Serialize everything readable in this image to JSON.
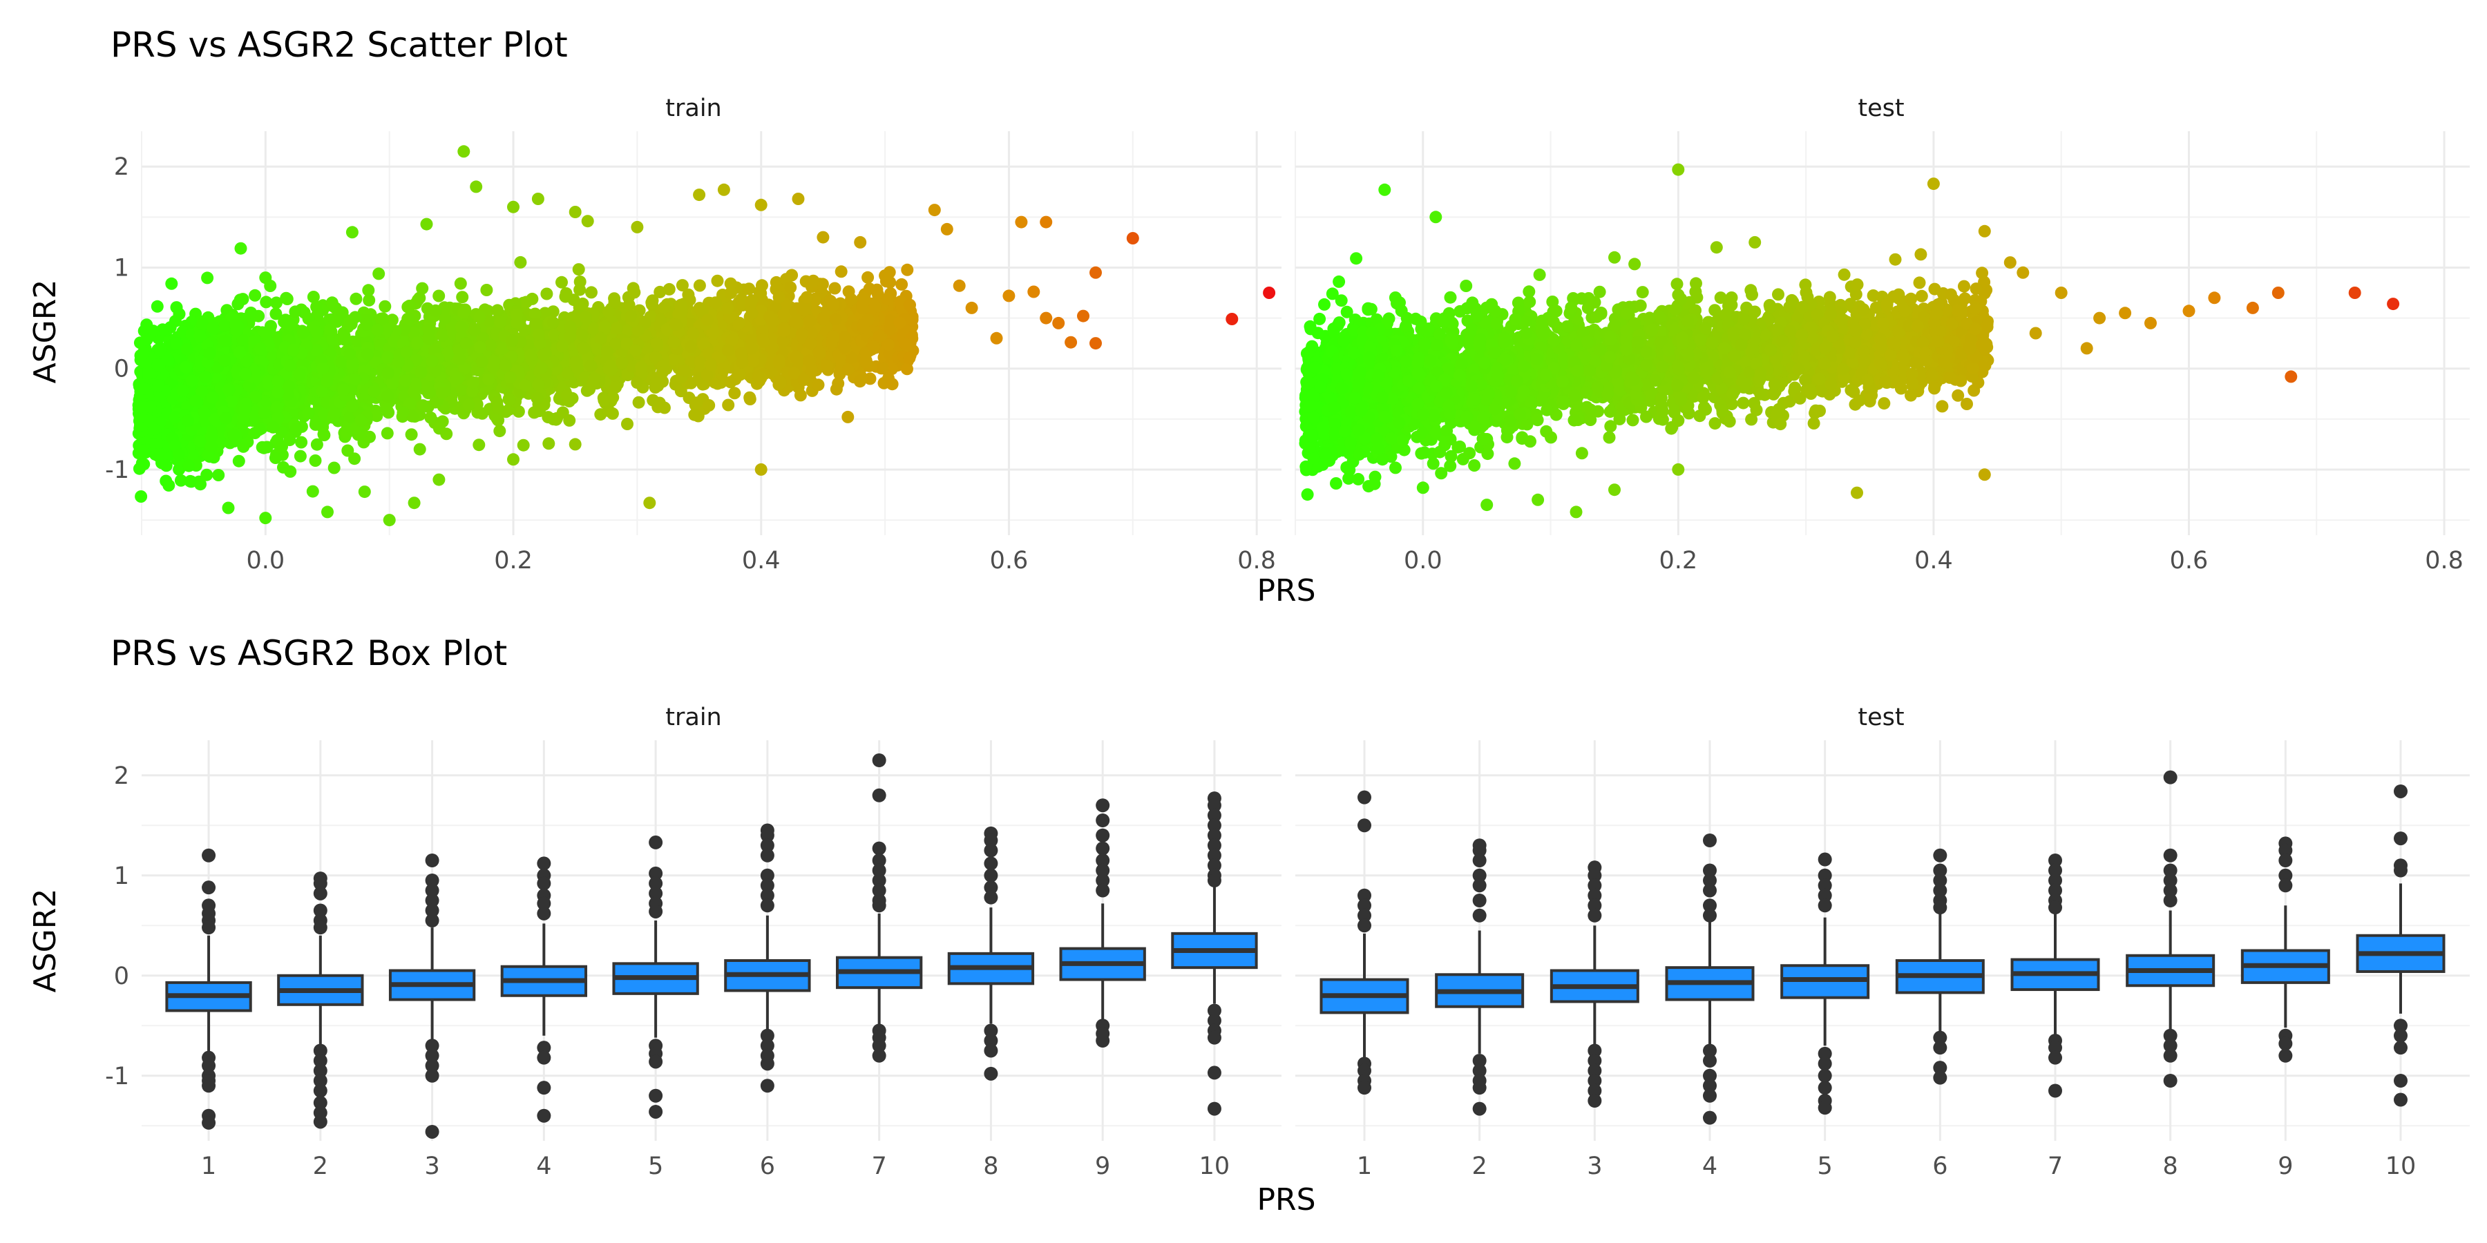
{
  "chart_data": [
    {
      "type": "scatter",
      "title": "PRS vs ASGR2 Scatter Plot",
      "xlabel": "PRS",
      "ylabel": "ASGR2",
      "xlim": [
        -0.1,
        0.82
      ],
      "ylim": [
        -1.65,
        2.35
      ],
      "x_ticks": [
        0.0,
        0.2,
        0.4,
        0.6,
        0.8
      ],
      "x_tick_labels": [
        "0.0",
        "0.2",
        "0.4",
        "0.6",
        "0.8"
      ],
      "y_ticks": [
        -1,
        0,
        1,
        2
      ],
      "y_tick_labels": [
        "-1",
        "0",
        "1",
        "2"
      ],
      "grid": true,
      "color_scale": {
        "low": "#33ff00",
        "mid": "#b8b800",
        "high_mid": "#e08a00",
        "high": "#ee1111",
        "range": [
          -0.08,
          0.81
        ]
      },
      "panels": [
        {
          "name": "train",
          "bulk": [
            [
              -0.08,
              -0.3
            ],
            [
              -0.06,
              -0.2
            ],
            [
              -0.05,
              -0.15
            ],
            [
              -0.03,
              -0.1
            ],
            [
              0.0,
              -0.08
            ],
            [
              0.03,
              -0.05
            ],
            [
              0.06,
              -0.02
            ],
            [
              0.1,
              0.02
            ],
            [
              0.14,
              0.05
            ],
            [
              0.18,
              0.08
            ],
            [
              0.22,
              0.12
            ],
            [
              0.26,
              0.15
            ],
            [
              0.3,
              0.18
            ],
            [
              0.34,
              0.22
            ],
            [
              0.38,
              0.26
            ],
            [
              0.42,
              0.3
            ],
            [
              0.46,
              0.33
            ],
            [
              0.5,
              0.38
            ]
          ],
          "points": [
            [
              0.16,
              2.15
            ],
            [
              0.17,
              1.8
            ],
            [
              0.22,
              1.68
            ],
            [
              0.25,
              1.55
            ],
            [
              0.2,
              1.6
            ],
            [
              0.13,
              1.43
            ],
            [
              0.07,
              1.35
            ],
            [
              -0.02,
              1.19
            ],
            [
              0.0,
              0.9
            ],
            [
              0.26,
              1.46
            ],
            [
              0.3,
              1.4
            ],
            [
              0.35,
              1.72
            ],
            [
              0.37,
              1.77
            ],
            [
              0.43,
              1.68
            ],
            [
              0.4,
              1.62
            ],
            [
              0.45,
              1.3
            ],
            [
              0.48,
              1.25
            ],
            [
              0.54,
              1.57
            ],
            [
              0.55,
              1.38
            ],
            [
              0.61,
              1.45
            ],
            [
              0.63,
              1.45
            ],
            [
              0.7,
              1.29
            ],
            [
              0.67,
              0.95
            ],
            [
              0.56,
              0.82
            ],
            [
              0.57,
              0.6
            ],
            [
              0.6,
              0.72
            ],
            [
              0.62,
              0.76
            ],
            [
              0.63,
              0.5
            ],
            [
              0.64,
              0.45
            ],
            [
              0.66,
              0.52
            ],
            [
              0.65,
              0.26
            ],
            [
              0.67,
              0.25
            ],
            [
              0.59,
              0.3
            ],
            [
              0.5,
              0.92
            ],
            [
              0.52,
              0.63
            ],
            [
              0.81,
              0.75
            ],
            [
              0.78,
              0.49
            ],
            [
              0.0,
              -1.48
            ],
            [
              -0.03,
              -1.38
            ],
            [
              0.05,
              -1.42
            ],
            [
              0.08,
              -1.22
            ],
            [
              0.1,
              -1.5
            ],
            [
              0.12,
              -1.33
            ],
            [
              0.14,
              -1.1
            ],
            [
              0.31,
              -1.33
            ],
            [
              0.4,
              -1.0
            ],
            [
              0.47,
              -0.48
            ],
            [
              0.2,
              -0.9
            ],
            [
              0.25,
              -0.75
            ],
            [
              -0.07,
              -0.85
            ],
            [
              -0.09,
              -0.6
            ],
            [
              0.02,
              -1.02
            ]
          ]
        },
        {
          "name": "test",
          "bulk": [
            [
              -0.07,
              -0.28
            ],
            [
              -0.05,
              -0.22
            ],
            [
              -0.03,
              -0.15
            ],
            [
              0.0,
              -0.12
            ],
            [
              0.03,
              -0.08
            ],
            [
              0.06,
              -0.05
            ],
            [
              0.1,
              -0.01
            ],
            [
              0.14,
              0.03
            ],
            [
              0.18,
              0.06
            ],
            [
              0.22,
              0.1
            ],
            [
              0.26,
              0.13
            ],
            [
              0.3,
              0.17
            ],
            [
              0.34,
              0.2
            ],
            [
              0.38,
              0.25
            ],
            [
              0.42,
              0.3
            ]
          ],
          "points": [
            [
              -0.03,
              1.77
            ],
            [
              0.01,
              1.5
            ],
            [
              0.2,
              1.97
            ],
            [
              0.4,
              1.83
            ],
            [
              0.44,
              1.36
            ],
            [
              0.33,
              0.93
            ],
            [
              0.37,
              1.08
            ],
            [
              0.39,
              1.13
            ],
            [
              0.46,
              1.05
            ],
            [
              0.47,
              0.95
            ],
            [
              0.26,
              1.25
            ],
            [
              0.23,
              1.2
            ],
            [
              0.15,
              1.1
            ],
            [
              0.5,
              0.75
            ],
            [
              0.53,
              0.5
            ],
            [
              0.55,
              0.55
            ],
            [
              0.57,
              0.45
            ],
            [
              0.6,
              0.57
            ],
            [
              0.62,
              0.7
            ],
            [
              0.65,
              0.6
            ],
            [
              0.67,
              0.75
            ],
            [
              0.73,
              0.75
            ],
            [
              0.76,
              0.64
            ],
            [
              0.68,
              -0.08
            ],
            [
              0.52,
              0.2
            ],
            [
              0.48,
              0.35
            ],
            [
              0.44,
              -1.05
            ],
            [
              0.34,
              -1.23
            ],
            [
              0.05,
              -1.35
            ],
            [
              0.09,
              -1.3
            ],
            [
              0.12,
              -1.42
            ],
            [
              0.0,
              -1.18
            ],
            [
              0.2,
              -1.0
            ],
            [
              -0.05,
              -0.85
            ],
            [
              0.28,
              -0.55
            ],
            [
              0.15,
              -1.2
            ]
          ]
        }
      ]
    },
    {
      "type": "box",
      "title": "PRS vs ASGR2 Box Plot",
      "xlabel": "PRS",
      "ylabel": "ASGR2",
      "categories": [
        "1",
        "2",
        "3",
        "4",
        "5",
        "6",
        "7",
        "8",
        "9",
        "10"
      ],
      "ylim": [
        -1.65,
        2.35
      ],
      "y_ticks": [
        -1,
        0,
        1,
        2
      ],
      "y_tick_labels": [
        "-1",
        "0",
        "1",
        "2"
      ],
      "grid": true,
      "box_fill": "#1e90ff",
      "box_stroke": "#333333",
      "panels": [
        {
          "name": "train",
          "boxes": [
            {
              "q1": -0.35,
              "median": -0.2,
              "q3": -0.07,
              "low": -0.78,
              "high": 0.4,
              "outliers": [
                1.2,
                0.88,
                0.7,
                0.62,
                0.55,
                0.48,
                -0.82,
                -0.9,
                -1.0,
                -1.05,
                -1.1,
                -1.4,
                -1.47
              ]
            },
            {
              "q1": -0.29,
              "median": -0.15,
              "q3": 0.0,
              "low": -0.7,
              "high": 0.4,
              "outliers": [
                0.97,
                0.92,
                0.82,
                0.65,
                0.55,
                0.48,
                -0.75,
                -0.85,
                -0.95,
                -1.05,
                -1.15,
                -1.27,
                -1.37,
                -1.46
              ]
            },
            {
              "q1": -0.24,
              "median": -0.09,
              "q3": 0.05,
              "low": -0.65,
              "high": 0.48,
              "outliers": [
                1.15,
                0.95,
                0.85,
                0.75,
                0.65,
                0.55,
                -0.7,
                -0.8,
                -0.9,
                -1.0,
                -1.56
              ]
            },
            {
              "q1": -0.2,
              "median": -0.05,
              "q3": 0.09,
              "low": -0.6,
              "high": 0.52,
              "outliers": [
                1.12,
                1.0,
                0.92,
                0.8,
                0.72,
                0.62,
                -0.72,
                -0.82,
                -1.12,
                -1.4
              ]
            },
            {
              "q1": -0.18,
              "median": -0.02,
              "q3": 0.12,
              "low": -0.62,
              "high": 0.55,
              "outliers": [
                1.33,
                1.02,
                0.92,
                0.82,
                0.72,
                0.64,
                -0.7,
                -0.78,
                -0.86,
                -1.2,
                -1.36
              ]
            },
            {
              "q1": -0.15,
              "median": 0.01,
              "q3": 0.15,
              "low": -0.55,
              "high": 0.6,
              "outliers": [
                1.45,
                1.4,
                1.3,
                1.2,
                1.0,
                0.9,
                0.8,
                0.7,
                -0.6,
                -0.7,
                -0.8,
                -0.88,
                -1.1
              ]
            },
            {
              "q1": -0.12,
              "median": 0.04,
              "q3": 0.18,
              "low": -0.5,
              "high": 0.62,
              "outliers": [
                2.15,
                1.8,
                1.27,
                1.15,
                1.05,
                0.95,
                0.85,
                0.75,
                0.7,
                -0.55,
                -0.62,
                -0.7,
                -0.8
              ]
            },
            {
              "q1": -0.08,
              "median": 0.08,
              "q3": 0.22,
              "low": -0.48,
              "high": 0.68,
              "outliers": [
                1.42,
                1.35,
                1.25,
                1.12,
                1.0,
                0.88,
                0.78,
                -0.55,
                -0.65,
                -0.75,
                -0.98
              ]
            },
            {
              "q1": -0.04,
              "median": 0.12,
              "q3": 0.27,
              "low": -0.45,
              "high": 0.72,
              "outliers": [
                1.7,
                1.55,
                1.4,
                1.27,
                1.15,
                1.05,
                0.95,
                0.85,
                -0.5,
                -0.58,
                -0.65
              ]
            },
            {
              "q1": 0.08,
              "median": 0.25,
              "q3": 0.42,
              "low": -0.28,
              "high": 0.9,
              "outliers": [
                1.77,
                1.7,
                1.6,
                1.5,
                1.4,
                1.3,
                1.2,
                1.1,
                1.0,
                0.95,
                -0.35,
                -0.45,
                -0.55,
                -0.62,
                -0.97,
                -1.33
              ]
            }
          ]
        },
        {
          "name": "test",
          "boxes": [
            {
              "q1": -0.37,
              "median": -0.2,
              "q3": -0.04,
              "low": -0.85,
              "high": 0.42,
              "outliers": [
                1.78,
                1.5,
                0.8,
                0.7,
                0.6,
                0.5,
                -0.88,
                -0.95,
                -1.05,
                -1.12
              ]
            },
            {
              "q1": -0.31,
              "median": -0.16,
              "q3": 0.01,
              "low": -0.78,
              "high": 0.45,
              "outliers": [
                1.3,
                1.25,
                1.15,
                1.0,
                0.9,
                0.75,
                0.6,
                -0.85,
                -0.95,
                -1.05,
                -1.12,
                -1.33
              ]
            },
            {
              "q1": -0.26,
              "median": -0.11,
              "q3": 0.05,
              "low": -0.72,
              "high": 0.5,
              "outliers": [
                1.08,
                1.0,
                0.9,
                0.8,
                0.7,
                0.6,
                -0.75,
                -0.85,
                -0.95,
                -1.05,
                -1.15,
                -1.25
              ]
            },
            {
              "q1": -0.24,
              "median": -0.07,
              "q3": 0.08,
              "low": -0.7,
              "high": 0.55,
              "outliers": [
                1.35,
                1.05,
                0.95,
                0.85,
                0.7,
                0.6,
                -0.75,
                -0.85,
                -1.0,
                -1.1,
                -1.2,
                -1.42
              ]
            },
            {
              "q1": -0.22,
              "median": -0.04,
              "q3": 0.1,
              "low": -0.7,
              "high": 0.58,
              "outliers": [
                1.16,
                1.0,
                0.9,
                0.8,
                0.7,
                -0.78,
                -0.88,
                -1.0,
                -1.12,
                -1.25,
                -1.32
              ]
            },
            {
              "q1": -0.17,
              "median": 0.0,
              "q3": 0.15,
              "low": -0.6,
              "high": 0.62,
              "outliers": [
                1.2,
                1.05,
                0.95,
                0.85,
                0.75,
                0.68,
                -0.62,
                -0.72,
                -0.92,
                -1.02
              ]
            },
            {
              "q1": -0.14,
              "median": 0.02,
              "q3": 0.16,
              "low": -0.6,
              "high": 0.62,
              "outliers": [
                1.15,
                1.05,
                0.95,
                0.85,
                0.75,
                0.68,
                -0.65,
                -0.72,
                -0.82,
                -1.15
              ]
            },
            {
              "q1": -0.1,
              "median": 0.05,
              "q3": 0.2,
              "low": -0.55,
              "high": 0.65,
              "outliers": [
                1.98,
                1.2,
                1.05,
                0.95,
                0.85,
                0.75,
                -0.6,
                -0.7,
                -0.8,
                -1.05
              ]
            },
            {
              "q1": -0.07,
              "median": 0.1,
              "q3": 0.25,
              "low": -0.52,
              "high": 0.7,
              "outliers": [
                1.32,
                1.25,
                1.15,
                1.0,
                0.9,
                -0.6,
                -0.68,
                -0.8
              ]
            },
            {
              "q1": 0.04,
              "median": 0.22,
              "q3": 0.4,
              "low": -0.38,
              "high": 0.92,
              "outliers": [
                1.84,
                1.37,
                1.1,
                1.05,
                -0.5,
                -0.6,
                -0.72,
                -1.05,
                -1.24
              ]
            }
          ]
        }
      ]
    }
  ]
}
